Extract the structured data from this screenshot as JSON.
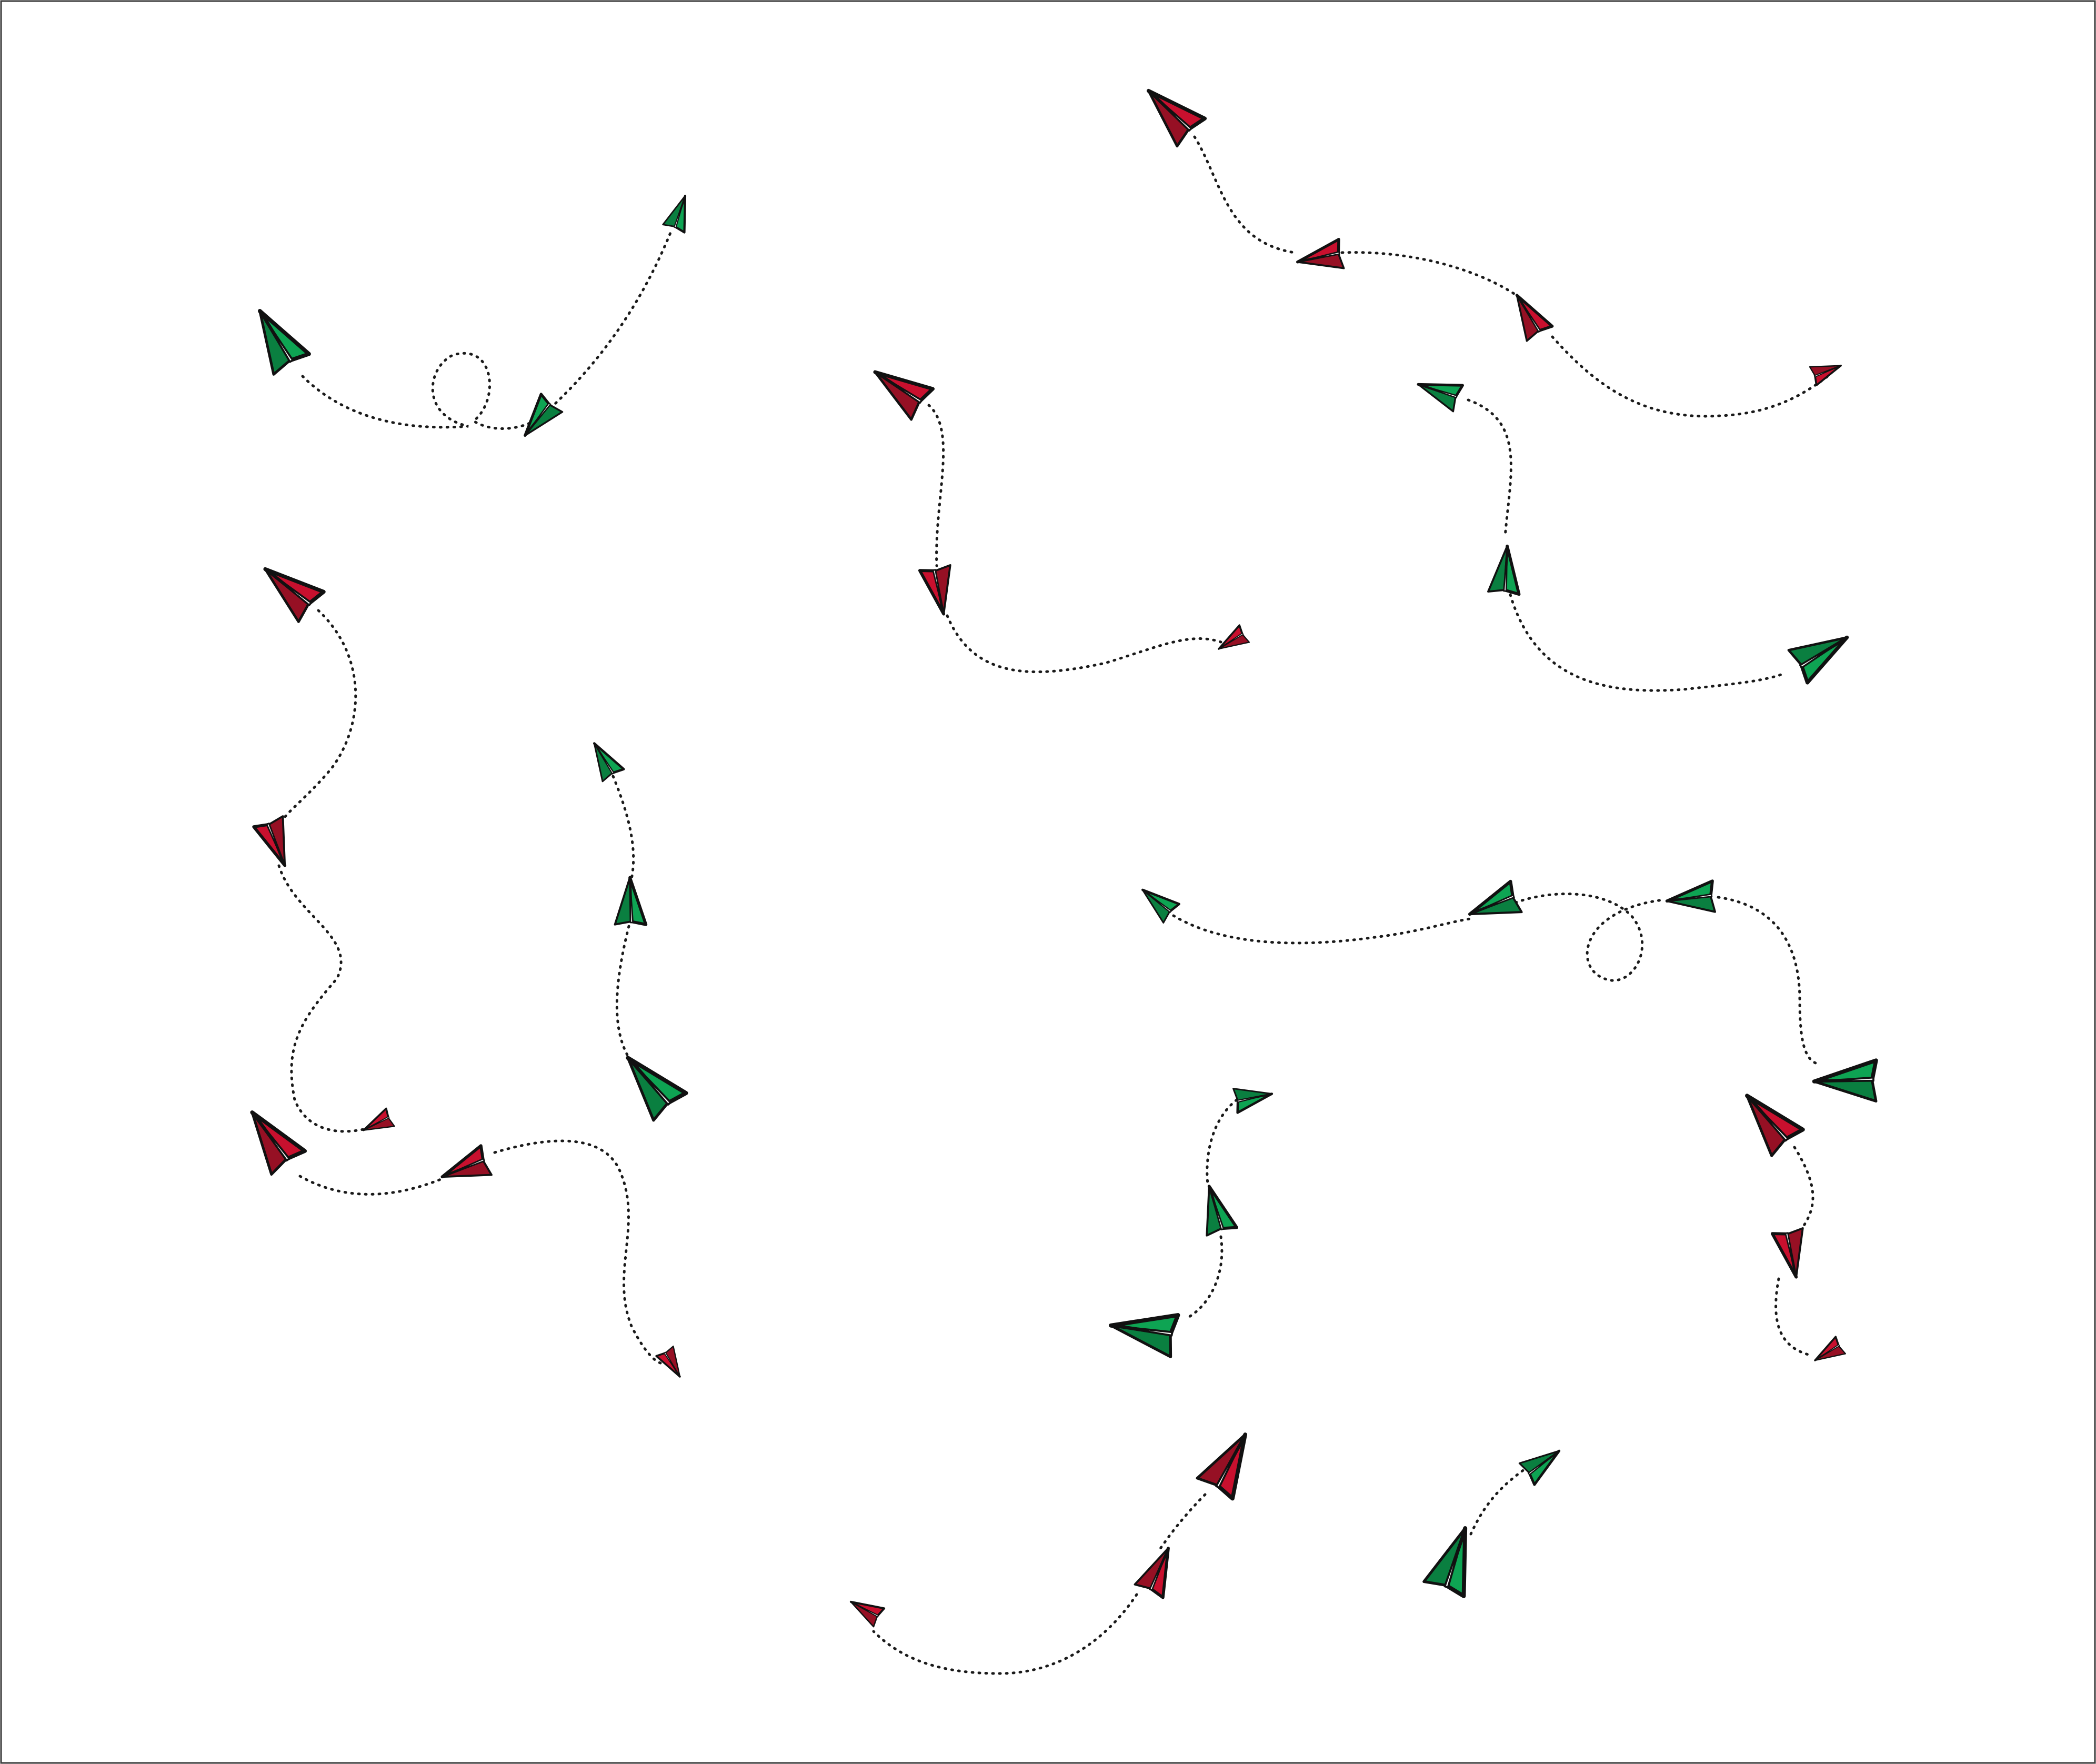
{
  "illustration": {
    "subject": "paper-airplane-flight-paths",
    "colors": {
      "green": "#0ea453",
      "green_dark": "#0a7f40",
      "red": "#c8102e",
      "red_dark": "#961024",
      "trail": "#1a1a1a",
      "background": "#ffffff"
    },
    "groups": [
      {
        "name": "green-loop-group",
        "color": "green",
        "planes": 3,
        "has_loop": true
      },
      {
        "name": "red-zigzag-group",
        "color": "red",
        "planes": 3,
        "has_loop": false
      },
      {
        "name": "red-top-right-group",
        "color": "red",
        "planes": 4,
        "has_loop": false
      },
      {
        "name": "green-right-group",
        "color": "green",
        "planes": 3,
        "has_loop": false
      },
      {
        "name": "red-left-long-group",
        "color": "red",
        "planes": 3,
        "has_loop": false
      },
      {
        "name": "green-vertical-group",
        "color": "green",
        "planes": 3,
        "has_loop": false
      },
      {
        "name": "red-bottom-left-group",
        "color": "red",
        "planes": 3,
        "has_loop": false
      },
      {
        "name": "green-middle-loop-group",
        "color": "green",
        "planes": 4,
        "has_loop": true
      },
      {
        "name": "green-small-vertical-group",
        "color": "green",
        "planes": 3,
        "has_loop": false
      },
      {
        "name": "red-right-vertical-group",
        "color": "red",
        "planes": 3,
        "has_loop": false
      },
      {
        "name": "red-bottom-arc-group",
        "color": "red",
        "planes": 3,
        "has_loop": false
      },
      {
        "name": "green-pair-group",
        "color": "green",
        "planes": 2,
        "has_loop": false
      }
    ]
  }
}
